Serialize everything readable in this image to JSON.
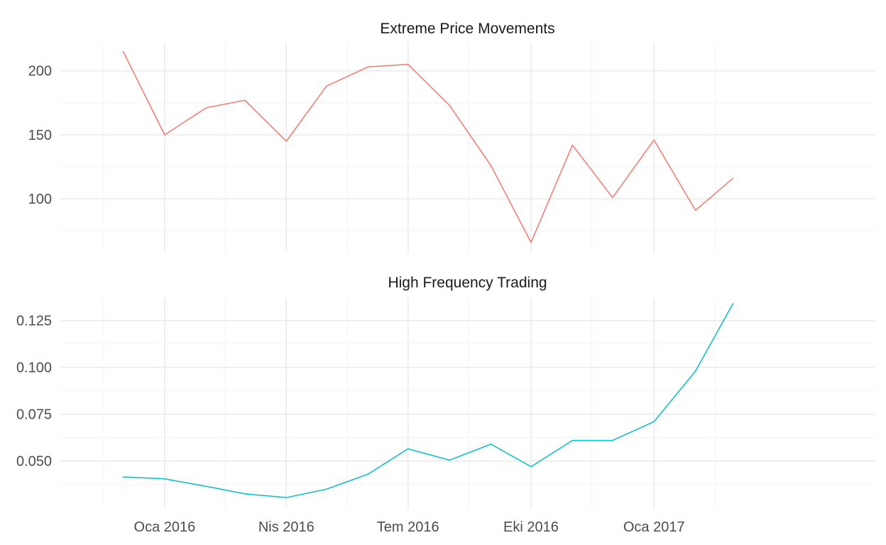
{
  "chart_data": {
    "type": "line",
    "facets": true,
    "grid": true,
    "legend": "none",
    "x_ticks": [
      {
        "date": "2016-01-01",
        "label": "Oca 2016"
      },
      {
        "date": "2016-04-01",
        "label": "Nis 2016"
      },
      {
        "date": "2016-07-01",
        "label": "Tem 2016"
      },
      {
        "date": "2016-10-01",
        "label": "Eki 2016"
      },
      {
        "date": "2017-01-01",
        "label": "Oca 2017"
      }
    ],
    "x_range": [
      "2015-10-15",
      "2017-06-15"
    ],
    "panels": [
      {
        "title": "Extreme Price Movements",
        "color": "#F8766D",
        "y_range": [
          58,
          222
        ],
        "y_ticks": [
          100,
          150,
          200
        ],
        "y_tick_labels": [
          "100",
          "150",
          "200"
        ],
        "x": [
          "2015-12-01",
          "2016-01-01",
          "2016-02-01",
          "2016-03-01",
          "2016-04-01",
          "2016-05-01",
          "2016-06-01",
          "2016-07-01",
          "2016-08-01",
          "2016-09-01",
          "2016-10-01",
          "2016-11-01",
          "2016-12-01",
          "2017-01-01",
          "2017-02-01",
          "2017-03-01"
        ],
        "values": [
          215,
          150,
          171,
          177,
          145,
          188,
          203,
          205,
          173,
          126,
          66,
          142,
          101,
          146,
          91,
          116
        ]
      },
      {
        "title": "High Frequency Trading",
        "color": "#00BFC4",
        "y_range": [
          0.0245,
          0.137
        ],
        "y_ticks": [
          0.05,
          0.075,
          0.1,
          0.125
        ],
        "y_tick_labels": [
          "0.050",
          "0.075",
          "0.100",
          "0.125"
        ],
        "x": [
          "2015-12-01",
          "2016-01-01",
          "2016-02-01",
          "2016-03-01",
          "2016-04-01",
          "2016-05-01",
          "2016-06-01",
          "2016-07-01",
          "2016-08-01",
          "2016-09-01",
          "2016-10-01",
          "2016-11-01",
          "2016-12-01",
          "2017-01-01",
          "2017-02-01",
          "2017-03-01"
        ],
        "values": [
          0.0415,
          0.0405,
          0.0365,
          0.0325,
          0.0305,
          0.035,
          0.043,
          0.0565,
          0.0505,
          0.059,
          0.047,
          0.061,
          0.061,
          0.071,
          0.098,
          0.134
        ]
      }
    ]
  }
}
